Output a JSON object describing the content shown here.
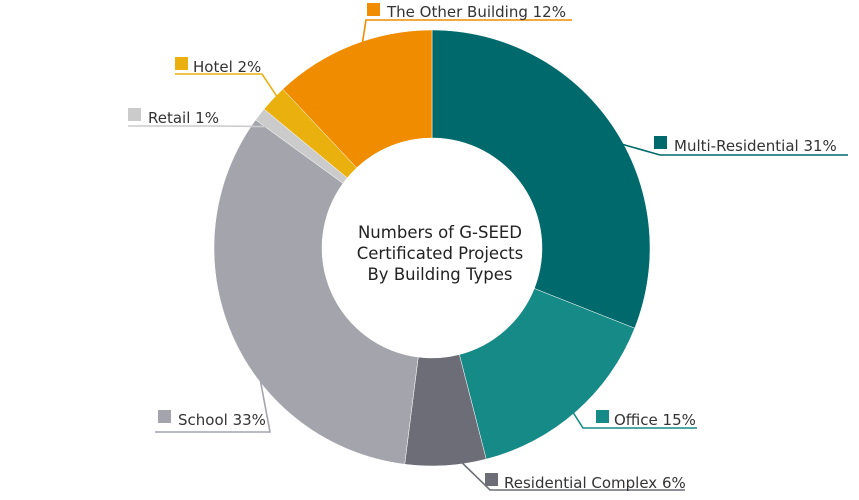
{
  "chart_data": {
    "type": "pie",
    "style": "donut",
    "title_lines": [
      "Numbers of G-SEED",
      "Certificated Projects",
      "By Building Types"
    ],
    "legend_placement": "callouts",
    "slices": [
      {
        "label": "Multi-Residential",
        "value": 31,
        "value_text": "31%",
        "color": "#00696b"
      },
      {
        "label": "Office",
        "value": 15,
        "value_text": "15%",
        "color": "#168a87"
      },
      {
        "label": "Residential Complex",
        "value": 6,
        "value_text": "6%",
        "color": "#6d6d78"
      },
      {
        "label": "School",
        "value": 33,
        "value_text": "33%",
        "color": "#a4a4ad"
      },
      {
        "label": "Retail",
        "value": 1,
        "value_text": "1%",
        "color": "#cbcbcb"
      },
      {
        "label": "Hotel",
        "value": 2,
        "value_text": "2%",
        "color": "#eab00d"
      },
      {
        "label": "The Other Building",
        "value": 12,
        "value_text": "12%",
        "color": "#f08c00"
      }
    ]
  }
}
